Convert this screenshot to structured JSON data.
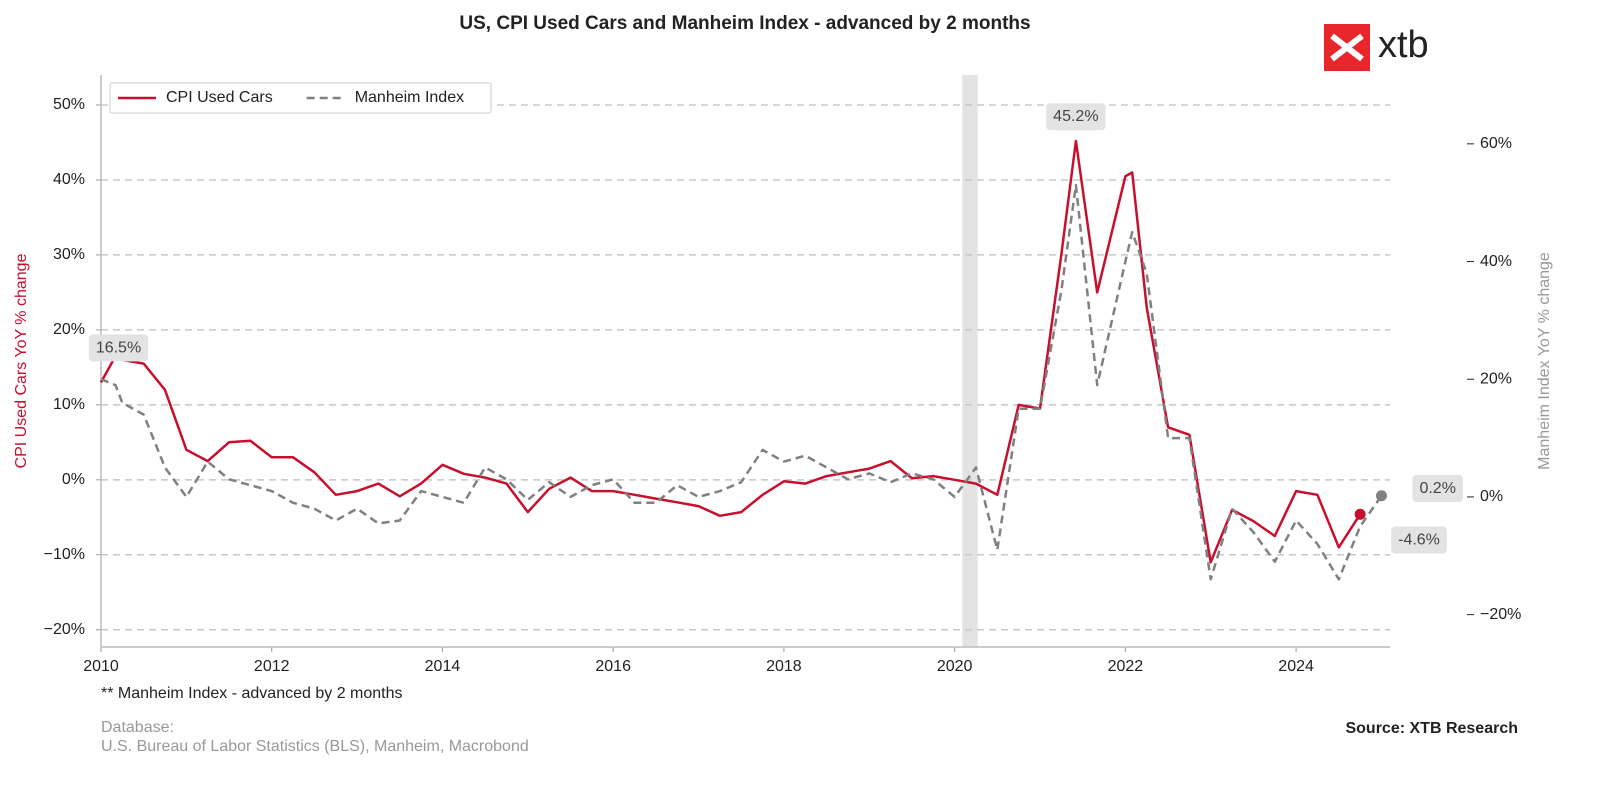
{
  "chart_data": {
    "type": "line",
    "title": "US, CPI Used Cars and Manheim Index - advanced by 2 months",
    "logo": "xtb",
    "x": [
      2010.0,
      2010.17,
      2010.25,
      2010.5,
      2010.75,
      2011.0,
      2011.25,
      2011.5,
      2011.75,
      2012.0,
      2012.25,
      2012.5,
      2012.75,
      2013.0,
      2013.25,
      2013.5,
      2013.75,
      2014.0,
      2014.25,
      2014.5,
      2014.75,
      2015.0,
      2015.25,
      2015.5,
      2015.75,
      2016.0,
      2016.25,
      2016.5,
      2016.75,
      2017.0,
      2017.25,
      2017.5,
      2017.75,
      2018.0,
      2018.25,
      2018.5,
      2018.75,
      2019.0,
      2019.25,
      2019.5,
      2019.75,
      2020.0,
      2020.25,
      2020.5,
      2020.75,
      2021.0,
      2021.25,
      2021.42,
      2021.67,
      2022.0,
      2022.08,
      2022.25,
      2022.5,
      2022.75,
      2023.0,
      2023.25,
      2023.5,
      2023.75,
      2024.0,
      2024.25,
      2024.5,
      2024.75,
      2025.0
    ],
    "series": [
      {
        "name": "CPI Used Cars",
        "color": "#c8102e",
        "axis": "y",
        "dash": false,
        "values": [
          13,
          16.5,
          16,
          15.5,
          12,
          4,
          2.5,
          5,
          5.2,
          3,
          3,
          1,
          -2,
          -1.5,
          -0.5,
          -2.2,
          -0.5,
          2,
          0.8,
          0.3,
          -0.5,
          -4.3,
          -1.2,
          0.3,
          -1.5,
          -1.5,
          -2,
          -2.5,
          -3,
          -3.5,
          -4.8,
          -4.3,
          -2,
          -0.2,
          -0.5,
          0.5,
          1,
          1.5,
          2.5,
          0.2,
          0.5,
          0,
          -0.5,
          -2,
          10,
          9.5,
          30,
          45.2,
          25,
          40.5,
          41,
          23,
          7,
          6,
          -11,
          -4,
          -5.5,
          -7.5,
          -1.5,
          -2,
          -9,
          -4.6,
          null
        ],
        "value_labels": [
          null,
          "16.5%",
          null,
          null,
          null,
          null,
          null,
          null,
          null,
          null,
          null,
          null,
          null,
          null,
          null,
          null,
          null,
          null,
          null,
          null,
          null,
          null,
          null,
          null,
          null,
          null,
          null,
          null,
          null,
          null,
          null,
          null,
          null,
          null,
          null,
          null,
          null,
          null,
          null,
          null,
          null,
          null,
          null,
          null,
          null,
          null,
          null,
          "45.2%",
          null,
          null,
          null,
          null,
          null,
          null,
          null,
          null,
          null,
          null,
          null,
          null,
          null,
          "-4.6%",
          null
        ]
      },
      {
        "name": "Manheim Index",
        "color": "#808080",
        "axis": "y2",
        "dash": true,
        "values": [
          20,
          19,
          16,
          14,
          5,
          0,
          6,
          3,
          2,
          1,
          -1,
          -2,
          -4,
          -2,
          -4.5,
          -4,
          1,
          0,
          -1,
          5,
          3,
          -0.5,
          2.5,
          0,
          2,
          3,
          -1,
          -1,
          2,
          0,
          1,
          2.5,
          8,
          6,
          7,
          5,
          3,
          4,
          2.5,
          4,
          3,
          0,
          5,
          -9,
          15,
          15,
          35,
          53,
          19,
          40,
          45,
          38,
          10,
          10,
          -14,
          -2,
          -6,
          -11,
          -4,
          -8,
          -14,
          -5,
          0.2
        ],
        "value_labels": [
          null,
          null,
          null,
          null,
          null,
          null,
          null,
          null,
          null,
          null,
          null,
          null,
          null,
          null,
          null,
          null,
          null,
          null,
          null,
          null,
          null,
          null,
          null,
          null,
          null,
          null,
          null,
          null,
          null,
          null,
          null,
          null,
          null,
          null,
          null,
          null,
          null,
          null,
          null,
          null,
          null,
          null,
          null,
          null,
          null,
          null,
          null,
          null,
          null,
          null,
          null,
          null,
          null,
          null,
          null,
          null,
          null,
          null,
          null,
          null,
          null,
          null,
          "0.2%"
        ]
      }
    ],
    "shaded_region": [
      2020.09,
      2020.27
    ],
    "xlim": [
      2010,
      2025.1
    ],
    "xticks": [
      2010,
      2012,
      2014,
      2016,
      2018,
      2020,
      2022,
      2024
    ],
    "ylim": [
      -22.3,
      54
    ],
    "yticks": [
      {
        "value": -20,
        "label": "−20%"
      },
      {
        "value": -10,
        "label": "−10%"
      },
      {
        "value": 0,
        "label": "0%"
      },
      {
        "value": 10,
        "label": "10%"
      },
      {
        "value": 20,
        "label": "20%"
      },
      {
        "value": 30,
        "label": "30%"
      },
      {
        "value": 40,
        "label": "40%"
      },
      {
        "value": 50,
        "label": "50%"
      }
    ],
    "y2lim": [
      -25.5,
      71.7
    ],
    "y2ticks": [
      {
        "value": -20,
        "label": "−20%"
      },
      {
        "value": 0,
        "label": "0%"
      },
      {
        "value": 20,
        "label": "20%"
      },
      {
        "value": 40,
        "label": "40%"
      },
      {
        "value": 60,
        "label": "60%"
      }
    ],
    "ylabel": "CPI Used Cars YoY % change",
    "y2label": "Manheim Index YoY % change",
    "grid": true,
    "legend": "upper left",
    "footnote": "** Manheim Index - advanced by 2 months",
    "database_title": "Database:",
    "database": "U.S. Bureau of Labor Statistics (BLS), Manheim, Macrobond",
    "source": "Source: XTB Research"
  }
}
